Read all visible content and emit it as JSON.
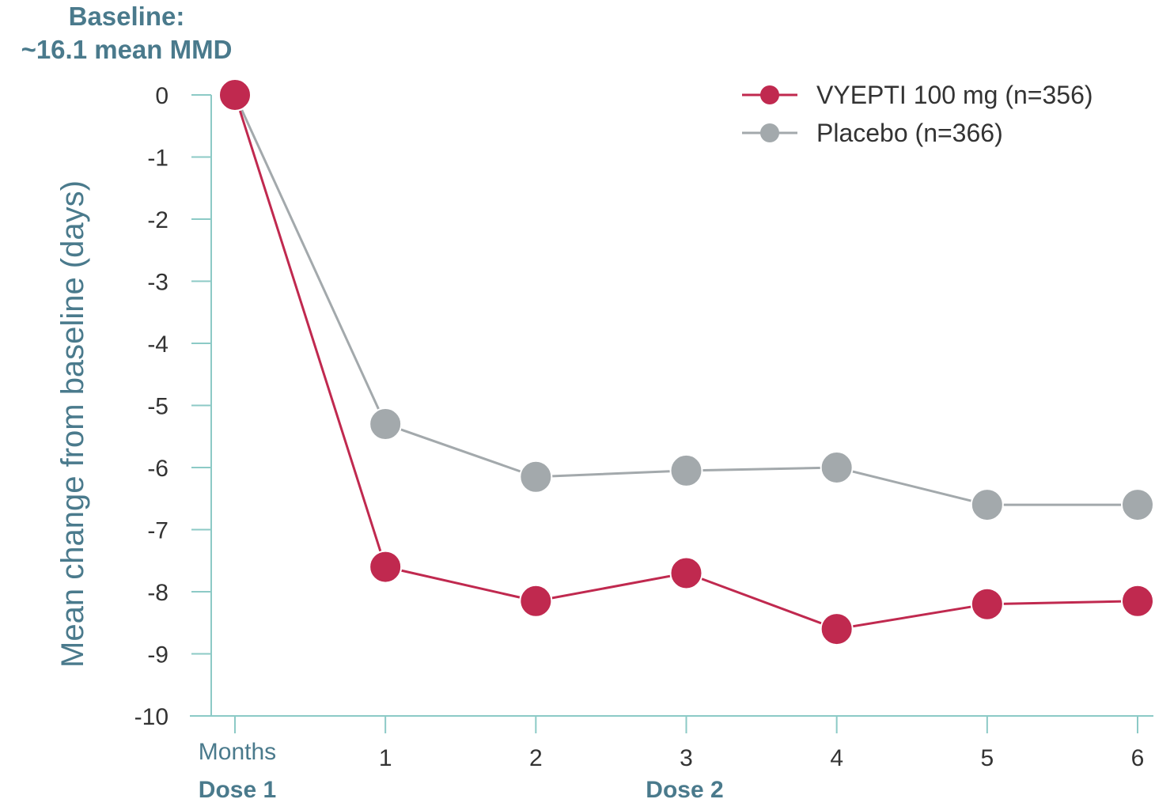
{
  "baseline_note": {
    "line1": "Baseline:",
    "line2": "~16.1 mean MMD"
  },
  "colors": {
    "vyepti": "#c0294f",
    "placebo": "#a3a9ac",
    "axis": "#8ccac6",
    "label": "#4a7a8c",
    "tick_text": "#333333"
  },
  "chart_data": {
    "type": "line",
    "ylabel": "Mean change from baseline (days)",
    "x_label_start": "Months",
    "x_categories": [
      "Months",
      "1",
      "2",
      "3",
      "4",
      "5",
      "6"
    ],
    "x": [
      0,
      1,
      2,
      3,
      4,
      5,
      6
    ],
    "ylim": [
      -10,
      0
    ],
    "y_ticks": [
      "0",
      "-1",
      "-2",
      "-3",
      "-4",
      "-5",
      "-6",
      "-7",
      "-8",
      "-9",
      "-10"
    ],
    "dose_labels": [
      {
        "text": "Dose 1",
        "at_month": 0
      },
      {
        "text": "Dose 2",
        "at_month": 3
      }
    ],
    "legend_position": "top-right",
    "grid": false,
    "series": [
      {
        "name": "VYEPTI 100 mg (n=356)",
        "color_key": "vyepti",
        "values": [
          0,
          -7.6,
          -8.15,
          -7.7,
          -8.6,
          -8.2,
          -8.15
        ]
      },
      {
        "name": "Placebo (n=366)",
        "color_key": "placebo",
        "values": [
          0,
          -5.3,
          -6.15,
          -6.05,
          -6.0,
          -6.6,
          -6.6
        ]
      }
    ]
  }
}
